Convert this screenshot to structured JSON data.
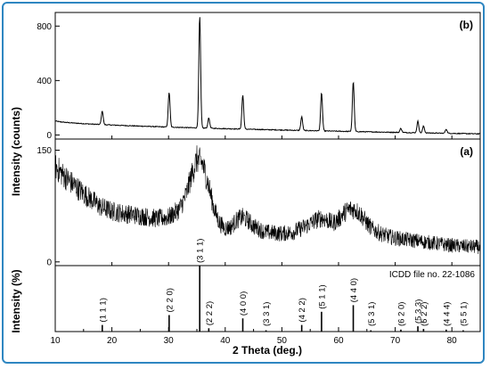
{
  "chart_data": {
    "type": "line",
    "x_label": "2 Theta (deg.)",
    "x_range": [
      10,
      85
    ],
    "x_ticks": [
      "10",
      "20",
      "30",
      "40",
      "50",
      "60",
      "70",
      "80"
    ],
    "panels": [
      {
        "id": "b",
        "label": "(b)",
        "ylabel": "Intensity (counts)",
        "ylim": [
          -30,
          900
        ],
        "y_ticks": [
          "0",
          "400",
          "800"
        ],
        "y_tick_values": [
          0,
          400,
          800
        ],
        "baseline": {
          "start": 105,
          "end": 8
        },
        "peaks": [
          {
            "x": 18.3,
            "h": 100
          },
          {
            "x": 30.1,
            "h": 255
          },
          {
            "x": 35.5,
            "h": 820
          },
          {
            "x": 37.1,
            "h": 75
          },
          {
            "x": 43.1,
            "h": 250
          },
          {
            "x": 53.5,
            "h": 100
          },
          {
            "x": 57.0,
            "h": 280
          },
          {
            "x": 62.6,
            "h": 365
          },
          {
            "x": 71.0,
            "h": 30
          },
          {
            "x": 74.0,
            "h": 85
          },
          {
            "x": 75.0,
            "h": 50
          },
          {
            "x": 79.0,
            "h": 30
          }
        ]
      },
      {
        "id": "a",
        "label": "(a)",
        "ylabel": "",
        "ylim": [
          -5,
          165
        ],
        "y_ticks": [
          "0",
          "150"
        ],
        "y_tick_values": [
          0,
          150
        ],
        "profile": [
          [
            10,
            128
          ],
          [
            12,
            112
          ],
          [
            15,
            92
          ],
          [
            18,
            74
          ],
          [
            20,
            68
          ],
          [
            22,
            65
          ],
          [
            25,
            62
          ],
          [
            28,
            58
          ],
          [
            30,
            60
          ],
          [
            31,
            65
          ],
          [
            32,
            72
          ],
          [
            33,
            88
          ],
          [
            34,
            115
          ],
          [
            35,
            138
          ],
          [
            36,
            132
          ],
          [
            37,
            105
          ],
          [
            38,
            72
          ],
          [
            39,
            52
          ],
          [
            40,
            45
          ],
          [
            41,
            47
          ],
          [
            42,
            56
          ],
          [
            43,
            60
          ],
          [
            44,
            56
          ],
          [
            45,
            48
          ],
          [
            47,
            40
          ],
          [
            50,
            38
          ],
          [
            52,
            40
          ],
          [
            54,
            47
          ],
          [
            56,
            56
          ],
          [
            57,
            59
          ],
          [
            58,
            56
          ],
          [
            59,
            52
          ],
          [
            60,
            57
          ],
          [
            61,
            66
          ],
          [
            62,
            71
          ],
          [
            63,
            70
          ],
          [
            64,
            63
          ],
          [
            65,
            52
          ],
          [
            66,
            44
          ],
          [
            68,
            36
          ],
          [
            70,
            32
          ],
          [
            72,
            30
          ],
          [
            75,
            27
          ],
          [
            78,
            24
          ],
          [
            80,
            22
          ],
          [
            82,
            21
          ],
          [
            85,
            20
          ]
        ]
      }
    ],
    "reference": {
      "ylabel": "Intensity (%)",
      "note": "ICDD file no. 22-1086",
      "ylim": [
        0,
        100
      ],
      "lines": [
        {
          "x": 18.3,
          "h": 10,
          "label": "(1 1 1)"
        },
        {
          "x": 30.1,
          "h": 25,
          "label": "(2 2 0)"
        },
        {
          "x": 35.5,
          "h": 100,
          "label": "(3 1 1)"
        },
        {
          "x": 37.1,
          "h": 5,
          "label": "(2 2 2)"
        },
        {
          "x": 43.1,
          "h": 20,
          "label": "(4 0 0)"
        },
        {
          "x": 47.2,
          "h": 2,
          "label": "(3 3 1)"
        },
        {
          "x": 53.5,
          "h": 10,
          "label": "(4 2 2)"
        },
        {
          "x": 57.0,
          "h": 30,
          "label": "(5 1 1)"
        },
        {
          "x": 62.6,
          "h": 40,
          "label": "(4 4 0)"
        },
        {
          "x": 65.7,
          "h": 2,
          "label": "(5 3 1)"
        },
        {
          "x": 71.0,
          "h": 3,
          "label": "(6 2 0)"
        },
        {
          "x": 74.0,
          "h": 8,
          "label": "(5 3 3)"
        },
        {
          "x": 75.0,
          "h": 4,
          "label": "(6 2 2)"
        },
        {
          "x": 79.0,
          "h": 3,
          "label": "(4 4 4)"
        },
        {
          "x": 82.0,
          "h": 2,
          "label": "(5 5 1)"
        }
      ]
    },
    "colors": {
      "frame": "#2e86c1",
      "line": "#000000"
    }
  }
}
